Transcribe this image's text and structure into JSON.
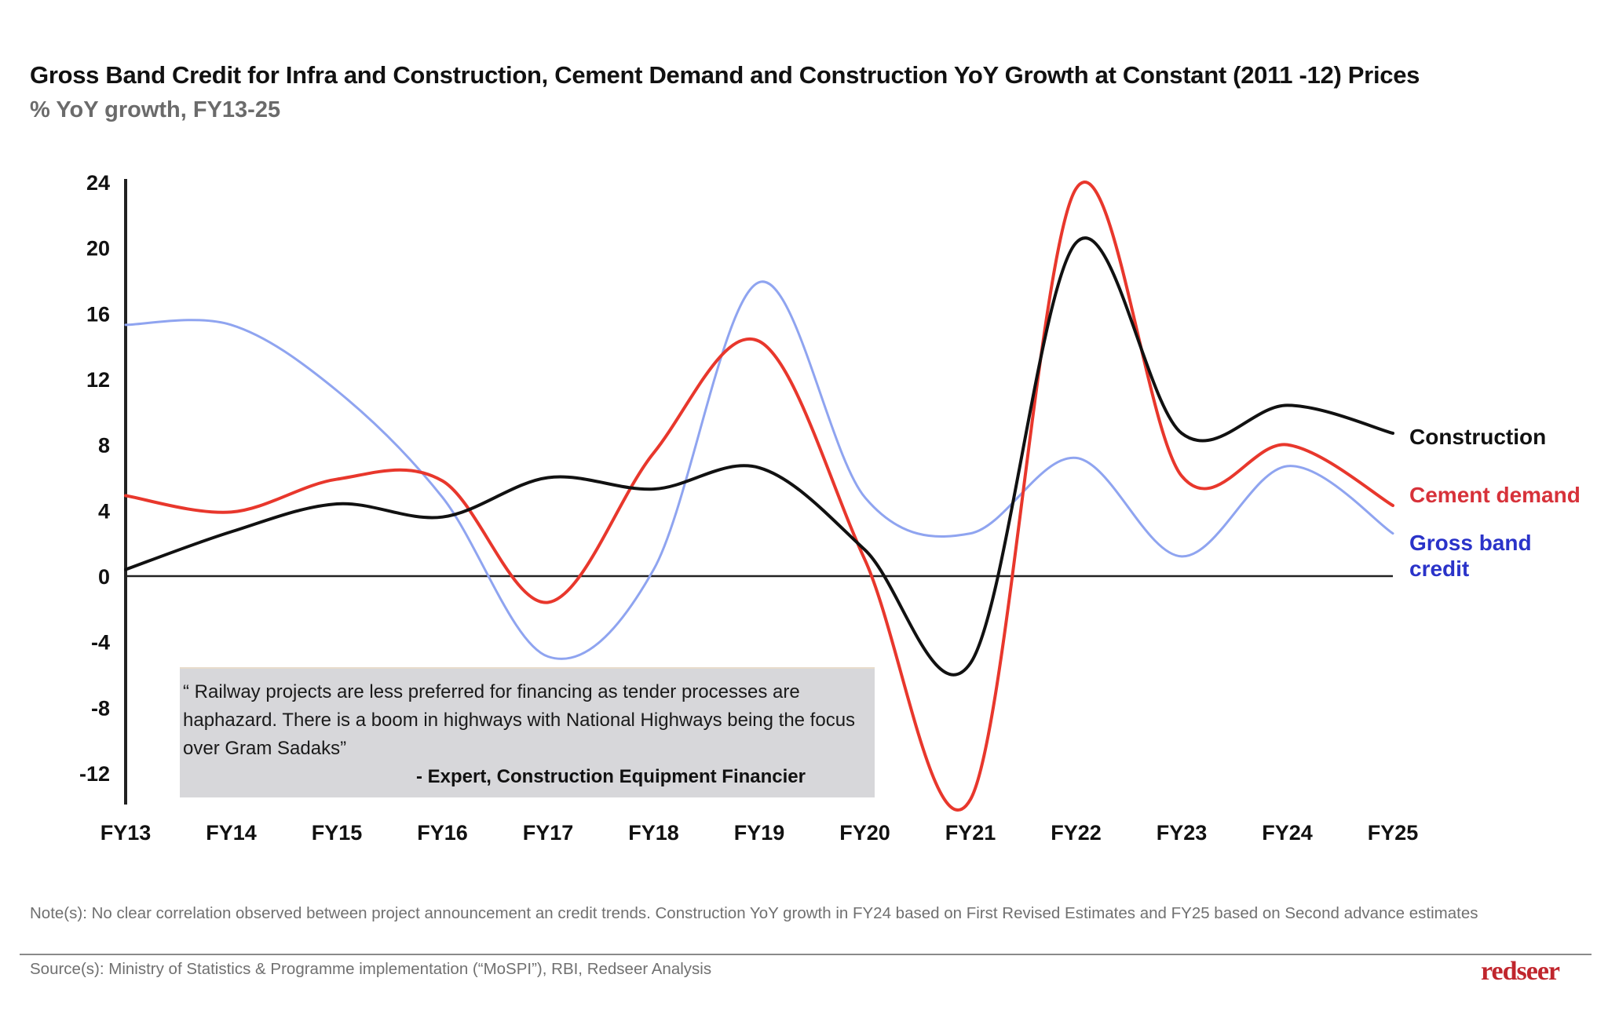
{
  "header": {
    "title": "Gross Band Credit for Infra and Construction, Cement Demand and Construction YoY Growth at Constant (2011 -12) Prices",
    "subtitle": "% YoY growth, FY13-25"
  },
  "chart_data": {
    "type": "line",
    "title": "Gross Band Credit for Infra and Construction, Cement Demand and Construction YoY Growth at Constant (2011 -12) Prices",
    "subtitle": "% YoY growth, FY13-25",
    "xlabel": "",
    "ylabel": "% YoY growth",
    "categories": [
      "FY13",
      "FY14",
      "FY15",
      "FY16",
      "FY17",
      "FY18",
      "FY19",
      "FY20",
      "FY21",
      "FY22",
      "FY23",
      "FY24",
      "FY25"
    ],
    "yticks": [
      24,
      20,
      16,
      12,
      8,
      4,
      0,
      -4,
      -8,
      -12
    ],
    "ytick_labels": [
      "24",
      "20",
      "16",
      "12",
      "8",
      "4",
      "0",
      "-4",
      "-8",
      "-12"
    ],
    "ylim": [
      -13.5,
      24
    ],
    "grid": false,
    "legend_placement": "right (end-of-line labels)",
    "series": [
      {
        "name": "Construction",
        "color": "#111111",
        "values": [
          0.4,
          2.7,
          4.4,
          3.6,
          6.0,
          5.3,
          6.6,
          1.6,
          -5.3,
          20.3,
          8.7,
          10.4,
          8.7
        ]
      },
      {
        "name": "Cement demand",
        "color": "#e8372c",
        "label_color": "#d7323a",
        "values": [
          4.9,
          3.9,
          5.9,
          5.8,
          -1.6,
          7.5,
          14.3,
          1.0,
          -13.6,
          23.6,
          6.1,
          8.0,
          4.3
        ]
      },
      {
        "name": "Gross band credit",
        "color": "#8fa4f0",
        "label_color": "#2a33c9",
        "values": [
          15.3,
          15.3,
          11.3,
          4.8,
          -4.9,
          0.4,
          17.9,
          4.8,
          2.6,
          7.2,
          1.2,
          6.7,
          2.6
        ]
      }
    ],
    "legend_labels": [
      {
        "lines": [
          "Construction"
        ],
        "color": "#111111"
      },
      {
        "lines": [
          "Cement demand"
        ],
        "color": "#d7323a"
      },
      {
        "lines": [
          "Gross band",
          "credit"
        ],
        "color": "#2a33c9"
      }
    ],
    "annotation": {
      "quote": "“ Railway projects are less preferred for financing as tender processes are haphazard. There is a boom in highways with National Highways being the focus over Gram Sadaks”",
      "author": "- Expert, Construction Equipment Financier"
    }
  },
  "footer": {
    "note": "Note(s): No clear correlation observed between project announcement an credit trends. Construction YoY growth in FY24 based on First Revised Estimates  and FY25 based on Second advance estimates",
    "source": "Source(s): Ministry of Statistics & Programme implementation (“MoSPI”), RBI, Redseer Analysis",
    "logo": "redseer"
  }
}
